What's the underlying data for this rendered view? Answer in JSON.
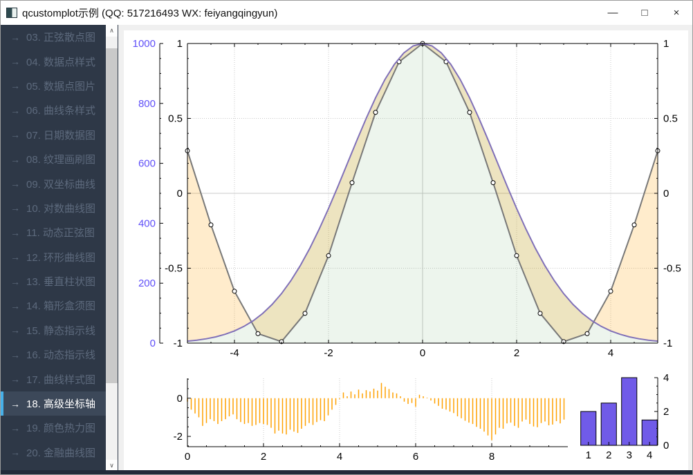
{
  "window": {
    "title": "qcustomplot示例 (QQ: 517216493 WX: feiyangqingyun)",
    "controls": {
      "minimize": "—",
      "maximize": "□",
      "close": "×"
    }
  },
  "sidebar": {
    "arrow_icon": "→",
    "scroll_up_icon": "∧",
    "scroll_down_icon": "∨",
    "items": [
      {
        "label": "03. 正弦散点图",
        "selected": false
      },
      {
        "label": "04. 数据点样式",
        "selected": false
      },
      {
        "label": "05. 数据点图片",
        "selected": false
      },
      {
        "label": "06. 曲线条样式",
        "selected": false
      },
      {
        "label": "07. 日期数据图",
        "selected": false
      },
      {
        "label": "08. 纹理画刷图",
        "selected": false
      },
      {
        "label": "09. 双坐标曲线",
        "selected": false
      },
      {
        "label": "10. 对数曲线图",
        "selected": false
      },
      {
        "label": "11. 动态正弦图",
        "selected": false
      },
      {
        "label": "12. 环形曲线图",
        "selected": false
      },
      {
        "label": "13. 垂直柱状图",
        "selected": false
      },
      {
        "label": "14. 箱形盒须图",
        "selected": false
      },
      {
        "label": "15. 静态指示线",
        "selected": false
      },
      {
        "label": "16. 动态指示线",
        "selected": false
      },
      {
        "label": "17. 曲线样式图",
        "selected": false
      },
      {
        "label": "18. 高级坐标轴",
        "selected": true
      },
      {
        "label": "19. 颜色热力图",
        "selected": false
      },
      {
        "label": "20. 金融曲线图",
        "selected": false
      }
    ]
  },
  "colors": {
    "sidebar_bg": "#2e3847",
    "item_text": "#5d6a7d",
    "selected_bg": "#3c4859",
    "selected_text": "#ffffff",
    "accent": "#47b0e8",
    "bottom_strip": "#222a39",
    "axis": "#000000",
    "grid": "#c8c8c8",
    "axis_label_blue": "#6050F8",
    "gauss_line": "#8070B8",
    "cos_line": "#787878",
    "marker_fill": "#ffffff",
    "marker_stroke": "#000000",
    "green_fill": "rgba(110,170,110,0.12)",
    "orange_fill": "rgba(255,161,0,0.20)",
    "impulse": "#FFA100",
    "bar_fill": "#705BE8",
    "bar_stroke": "#000000"
  },
  "chart_data": [
    {
      "type": "line",
      "name": "main-plot",
      "xlim": [
        -5,
        5
      ],
      "inner_ylim": [
        -1,
        1
      ],
      "outer_ylim": [
        0,
        1000
      ],
      "x_ticks": [
        -4,
        -2,
        0,
        2,
        4
      ],
      "x_subtick_step": 0.5,
      "inner_y_ticks": [
        -1,
        -0.5,
        0,
        0.5,
        1
      ],
      "inner_y_subtick_step": 0.1,
      "outer_y_ticks": [
        0,
        200,
        400,
        600,
        800,
        1000
      ],
      "outer_y_subtick_step": 50,
      "grid": "dotted, zero lines solid",
      "series": [
        {
          "name": "gauss",
          "axis": "outer",
          "x_start": -5,
          "x_step": 0.2,
          "values": [
            6.7,
            10.0,
            14.5,
            20.8,
            29.4,
            40.8,
            55.7,
            74.9,
            99.1,
            129.0,
            165.3,
            208.5,
            258.7,
            316.0,
            379.9,
            449.3,
            523.0,
            599.3,
            675.7,
            749.8,
            818.7,
            879.9,
            930.5,
            968.5,
            992.0,
            1000.0,
            992.0,
            968.5,
            930.5,
            879.9,
            818.7,
            749.8,
            675.7,
            599.3,
            523.0,
            449.3,
            379.9,
            316.0,
            258.7,
            208.5,
            165.3,
            129.0,
            99.1,
            74.9,
            55.7,
            40.8,
            29.4,
            20.8,
            14.5,
            10.0,
            6.7
          ]
        },
        {
          "name": "cos",
          "axis": "inner",
          "markers": "circle",
          "x_start": -5,
          "x_step": 0.5,
          "values": [
            0.2837,
            -0.2108,
            -0.6536,
            -0.9365,
            -0.99,
            -0.8011,
            -0.4161,
            0.0707,
            0.5403,
            0.8776,
            1.0,
            0.8776,
            0.5403,
            0.0707,
            -0.4161,
            -0.8011,
            -0.99,
            -0.9365,
            -0.6536,
            -0.2108,
            0.2837
          ]
        }
      ]
    },
    {
      "type": "bar",
      "name": "impulse-plot",
      "style": "impulse",
      "xlim": [
        0,
        10
      ],
      "ylim": [
        -2.54,
        1.04
      ],
      "x_ticks": [
        0,
        2,
        4,
        6,
        8
      ],
      "x_subtick_step": 0.5,
      "y_ticks": [
        -2,
        0
      ],
      "y_subtick_step": 0.5,
      "x_start": 0,
      "x_step": 0.1,
      "values": [
        -0.18,
        -0.6,
        -0.8,
        -1.0,
        -1.45,
        -1.3,
        -1.1,
        -1.2,
        -1.35,
        -1.2,
        -1.1,
        -0.95,
        -0.85,
        -1.1,
        -1.25,
        -1.35,
        -1.3,
        -1.45,
        -1.4,
        -1.3,
        -1.35,
        -1.4,
        -1.55,
        -1.85,
        -1.7,
        -1.85,
        -1.9,
        -1.65,
        -1.75,
        -1.82,
        -1.6,
        -1.45,
        -1.3,
        -1.4,
        -1.25,
        -1.15,
        -1.2,
        -0.9,
        -0.6,
        -0.35,
        -0.05,
        0.3,
        0.1,
        0.35,
        0.2,
        0.45,
        0.25,
        0.42,
        0.35,
        0.5,
        0.4,
        0.8,
        0.6,
        0.48,
        0.3,
        0.25,
        0.1,
        -0.18,
        -0.3,
        -0.25,
        -0.45,
        0.18,
        0.1,
        0.03,
        -0.12,
        -0.28,
        -0.4,
        -0.55,
        -0.6,
        -0.7,
        -0.78,
        -0.95,
        -1.05,
        -1.18,
        -1.28,
        -1.35,
        -1.5,
        -1.6,
        -1.75,
        -1.95,
        -2.2,
        -1.9,
        -1.55,
        -1.6,
        -1.32,
        -1.28,
        -1.45,
        -1.55,
        -1.22,
        -1.12,
        -1.35,
        -1.48,
        -1.52,
        -1.3,
        -1.22,
        -1.42,
        -1.38,
        -1.2,
        -1.32,
        -1.12
      ]
    },
    {
      "type": "bar",
      "name": "bars-plot",
      "xlim": [
        0.6,
        4.4
      ],
      "ylim": [
        0,
        4
      ],
      "categories": [
        1,
        2,
        3,
        4
      ],
      "values": [
        2,
        2.5,
        4,
        1.5
      ],
      "bar_width_units": 0.75,
      "x_ticks": [
        1,
        2,
        3,
        4
      ],
      "y_ticks": [
        0,
        2,
        4
      ],
      "y_subtick_step": 0.5
    }
  ]
}
